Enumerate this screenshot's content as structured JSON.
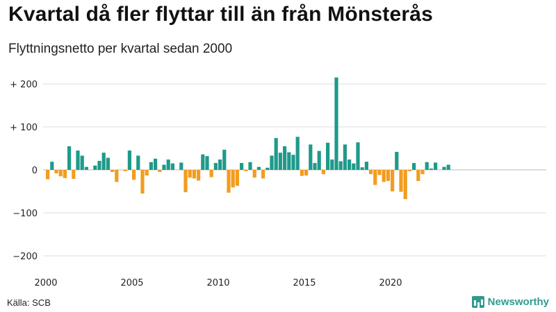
{
  "title": "Kvartal då fler flyttar till än från Mönsterås",
  "subtitle": "Flyttningsnetto per kvartal sedan 2000",
  "source": "Källa: SCB",
  "brand": "Newsworthy",
  "colors": {
    "positive": "#1f9a8a",
    "negative": "#f39c1f",
    "grid": "#dcdcdc",
    "brand": "#2f9b8e"
  },
  "chart_data": {
    "type": "bar",
    "title": "Kvartal då fler flyttar till än från Mönsterås",
    "subtitle": "Flyttningsnetto per kvartal sedan 2000",
    "x_start": "2000 Q1",
    "x_ticks": [
      "2000",
      "2005",
      "2010",
      "2015",
      "2020"
    ],
    "y_ticks": [
      200,
      100,
      0,
      -100,
      -200
    ],
    "y_tick_labels": [
      "+ 200",
      "+ 100",
      "0",
      "−100",
      "−200"
    ],
    "ylim": [
      -215,
      225
    ],
    "grid": true,
    "values": [
      -22,
      19,
      -8,
      -15,
      -19,
      55,
      -21,
      45,
      33,
      7,
      0,
      10,
      21,
      40,
      28,
      -5,
      -28,
      0,
      -3,
      45,
      -23,
      33,
      -55,
      -13,
      18,
      26,
      -5,
      12,
      24,
      15,
      0,
      17,
      -52,
      -18,
      -20,
      -25,
      36,
      32,
      -17,
      16,
      24,
      47,
      -53,
      -41,
      -37,
      16,
      -3,
      18,
      -18,
      7,
      -20,
      5,
      33,
      74,
      40,
      55,
      41,
      35,
      77,
      -14,
      -13,
      59,
      16,
      44,
      -10,
      63,
      24,
      215,
      20,
      59,
      24,
      15,
      64,
      6,
      19,
      -10,
      -35,
      -12,
      -28,
      -26,
      -50,
      42,
      -51,
      -68,
      -3,
      16,
      -26,
      -10,
      18,
      3,
      17,
      0,
      7,
      12
    ]
  }
}
